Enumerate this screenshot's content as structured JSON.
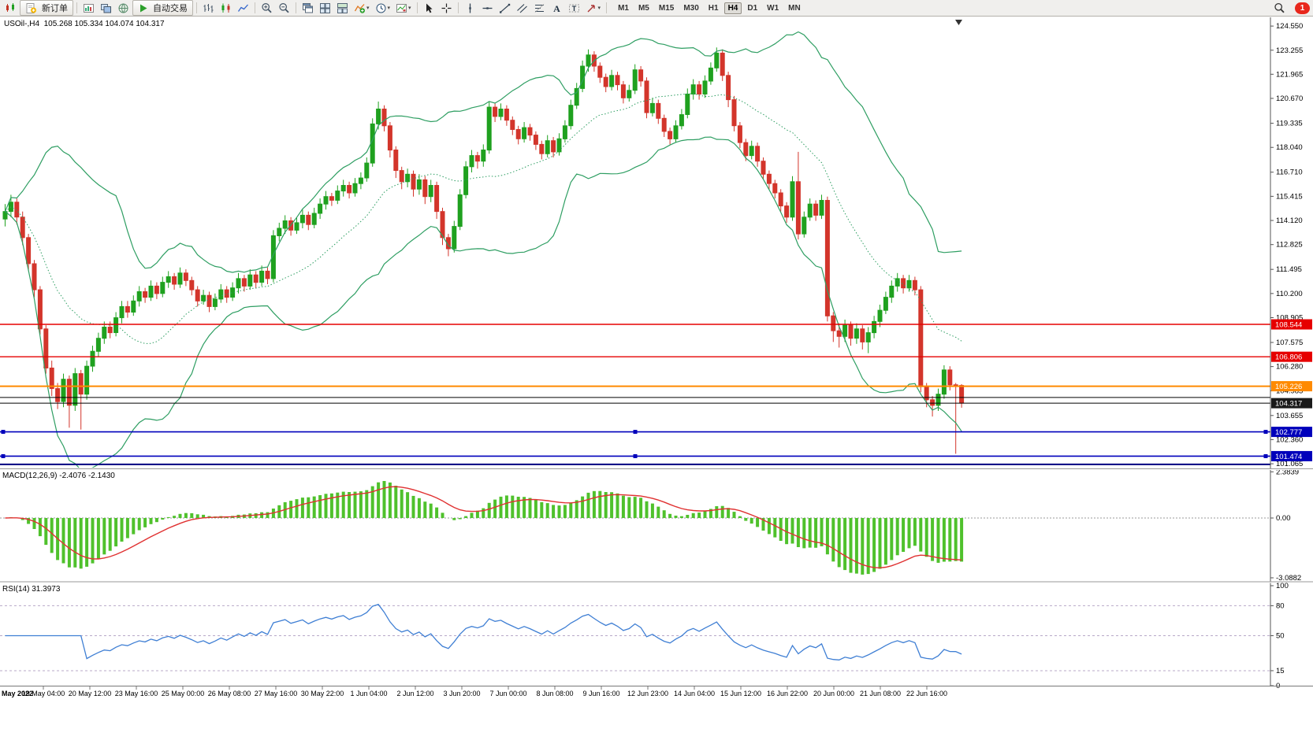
{
  "toolbar": {
    "new_order_label": "新订单",
    "auto_trading_label": "自动交易",
    "timeframes": [
      "M1",
      "M5",
      "M15",
      "M30",
      "H1",
      "H4",
      "D1",
      "W1",
      "MN"
    ],
    "active_timeframe": "H4",
    "notification_count": "1",
    "icons": [
      "app-logo",
      "new-order",
      "new-chart",
      "profiles",
      "terminal",
      "auto-trading",
      "bar-chart",
      "candlestick-chart",
      "line-chart",
      "zoom-in",
      "zoom-out",
      "cascade-windows",
      "tile-windows",
      "arrange-windows",
      "indicators",
      "periods",
      "templates",
      "cursor",
      "crosshair",
      "vertical-line",
      "horizontal-line",
      "trendline",
      "equidistant-channel",
      "fibonacci",
      "text",
      "text-label",
      "arrow-shapes",
      "search",
      "notification"
    ]
  },
  "chart": {
    "symbol_label": "USOil-,H4",
    "ohlc_label": "105.268 105.334 104.074 104.317"
  },
  "macd": {
    "label": "MACD(12,26,9) -2.4076 -2.1430",
    "axis": [
      {
        "value": 2.3839,
        "label": "2.3839"
      },
      {
        "value": 0,
        "label": "0.00"
      },
      {
        "value": -3.0882,
        "label": "-3.0882"
      }
    ]
  },
  "rsi": {
    "label": "RSI(14) 31.3973",
    "levels": [
      80,
      50,
      15
    ],
    "axis": [
      {
        "value": 100,
        "label": "100"
      },
      {
        "value": 80,
        "label": "80"
      },
      {
        "value": 50,
        "label": "50"
      },
      {
        "value": 15,
        "label": "15"
      },
      {
        "value": 0,
        "label": "0"
      }
    ]
  },
  "colors": {
    "candle_up": "#1fa11f",
    "candle_down": "#d3352b",
    "bands": "#2e9e62",
    "macd_hist": "#4fc12c",
    "macd_signal": "#e03131",
    "rsi_line": "#3f7fd4",
    "hline_red": "#e60000",
    "hline_orange": "#ff8a00",
    "hline_blue": "#0000bb",
    "axis_text": "#000000"
  },
  "chart_data": {
    "type": "candlestick",
    "symbol": "USOil-",
    "timeframe": "H4",
    "ohlc_current": {
      "open": 105.268,
      "high": 105.334,
      "low": 104.074,
      "close": 104.317
    },
    "indicators": {
      "bollinger": {
        "period": 20,
        "deviation": 2
      },
      "macd": {
        "fast": 12,
        "slow": 26,
        "signal": 9,
        "current_main": -2.4076,
        "current_signal": -2.143
      },
      "rsi": {
        "period": 14,
        "current": 31.3973
      }
    },
    "y_ticks": [
      124.55,
      123.255,
      121.965,
      120.67,
      119.335,
      118.04,
      116.71,
      115.415,
      114.12,
      112.825,
      111.495,
      110.2,
      108.905,
      107.575,
      106.28,
      104.985,
      103.655,
      102.36,
      101.065
    ],
    "x_labels": [
      "May 2022",
      "19 May 04:00",
      "20 May 12:00",
      "23 May 16:00",
      "25 May 00:00",
      "26 May 08:00",
      "27 May 16:00",
      "30 May 22:00",
      "1 Jun 04:00",
      "2 Jun 12:00",
      "3 Jun 20:00",
      "7 Jun 00:00",
      "8 Jun 08:00",
      "9 Jun 16:00",
      "12 Jun 23:00",
      "14 Jun 04:00",
      "15 Jun 12:00",
      "16 Jun 22:00",
      "20 Jun 00:00",
      "21 Jun 08:00",
      "22 Jun 16:00"
    ],
    "hlines": [
      {
        "price": 108.544,
        "label": "108.544",
        "color": "#e60000",
        "width": 1.4
      },
      {
        "price": 106.806,
        "label": "106.806",
        "color": "#e60000",
        "width": 1.4
      },
      {
        "price": 105.226,
        "label": "105.226",
        "color": "#ff8a00",
        "width": 2
      },
      {
        "price": 104.62,
        "label": null,
        "color": "#000000",
        "width": 1
      },
      {
        "price": 104.317,
        "label": "104.317",
        "color": "#000000",
        "width": 1,
        "tag": "#1a1a1a"
      },
      {
        "price": 102.777,
        "label": "102.777",
        "color": "#0000bb",
        "width": 1.6,
        "handles": true
      },
      {
        "price": 101.474,
        "label": "101.474",
        "color": "#0000bb",
        "width": 1.6,
        "handles": true
      },
      {
        "price": 101.03,
        "label": null,
        "color": "#000080",
        "width": 2
      }
    ],
    "candles": [
      [
        114.2,
        115.0,
        113.8,
        114.6
      ],
      [
        114.6,
        115.5,
        114.3,
        115.1
      ],
      [
        115.1,
        115.3,
        113.9,
        114.3
      ],
      [
        114.3,
        114.6,
        112.8,
        113.2
      ],
      [
        113.2,
        113.4,
        111.4,
        111.8
      ],
      [
        111.8,
        112.0,
        110.0,
        110.4
      ],
      [
        110.4,
        110.6,
        108.0,
        108.3
      ],
      [
        108.3,
        108.5,
        105.9,
        106.2
      ],
      [
        106.2,
        106.6,
        104.7,
        105.1
      ],
      [
        105.1,
        105.4,
        104.0,
        104.4
      ],
      [
        104.4,
        105.9,
        104.1,
        105.6
      ],
      [
        105.6,
        105.8,
        103.0,
        104.2
      ],
      [
        104.2,
        106.2,
        103.9,
        105.9
      ],
      [
        105.9,
        106.1,
        102.9,
        104.8
      ],
      [
        104.8,
        106.6,
        104.5,
        106.3
      ],
      [
        106.3,
        107.4,
        106.0,
        107.1
      ],
      [
        107.1,
        108.1,
        106.8,
        107.8
      ],
      [
        107.8,
        108.7,
        107.5,
        108.4
      ],
      [
        108.4,
        108.7,
        107.8,
        108.1
      ],
      [
        108.1,
        109.2,
        107.9,
        108.9
      ],
      [
        108.9,
        109.8,
        108.6,
        109.5
      ],
      [
        109.5,
        109.8,
        108.9,
        109.2
      ],
      [
        109.2,
        110.1,
        109.0,
        109.8
      ],
      [
        109.8,
        110.6,
        109.5,
        110.3
      ],
      [
        110.3,
        110.5,
        109.7,
        110.0
      ],
      [
        110.0,
        110.9,
        109.8,
        110.6
      ],
      [
        110.6,
        110.8,
        109.9,
        110.2
      ],
      [
        110.2,
        111.1,
        110.0,
        110.8
      ],
      [
        110.8,
        111.4,
        110.5,
        111.1
      ],
      [
        111.1,
        111.3,
        110.4,
        110.7
      ],
      [
        110.7,
        111.6,
        110.5,
        111.3
      ],
      [
        111.3,
        111.5,
        110.6,
        110.9
      ],
      [
        110.9,
        111.1,
        110.1,
        110.4
      ],
      [
        110.4,
        110.6,
        109.5,
        109.8
      ],
      [
        109.8,
        110.4,
        109.6,
        110.1
      ],
      [
        110.1,
        110.3,
        109.2,
        109.5
      ],
      [
        109.5,
        110.2,
        109.3,
        109.9
      ],
      [
        109.9,
        110.7,
        109.7,
        110.4
      ],
      [
        110.4,
        110.6,
        109.7,
        110.0
      ],
      [
        110.0,
        110.8,
        109.8,
        110.5
      ],
      [
        110.5,
        111.3,
        110.2,
        111.0
      ],
      [
        111.0,
        111.2,
        110.3,
        110.6
      ],
      [
        110.6,
        111.5,
        110.4,
        111.2
      ],
      [
        111.2,
        111.4,
        110.5,
        110.8
      ],
      [
        110.8,
        111.7,
        110.6,
        111.4
      ],
      [
        111.4,
        111.6,
        110.7,
        111.0
      ],
      [
        111.0,
        113.6,
        110.8,
        113.3
      ],
      [
        113.3,
        114.0,
        113.0,
        113.7
      ],
      [
        113.7,
        114.4,
        113.4,
        114.1
      ],
      [
        114.1,
        114.3,
        113.3,
        113.6
      ],
      [
        113.6,
        114.3,
        113.4,
        114.0
      ],
      [
        114.0,
        114.7,
        113.7,
        114.4
      ],
      [
        114.4,
        114.6,
        113.6,
        113.9
      ],
      [
        113.9,
        114.8,
        113.7,
        114.5
      ],
      [
        114.5,
        115.3,
        114.2,
        115.0
      ],
      [
        115.0,
        115.7,
        114.7,
        115.4
      ],
      [
        115.4,
        115.6,
        114.9,
        115.2
      ],
      [
        115.2,
        116.0,
        115.0,
        115.7
      ],
      [
        115.7,
        116.3,
        115.4,
        116.0
      ],
      [
        116.0,
        116.2,
        115.3,
        115.6
      ],
      [
        115.6,
        116.4,
        115.4,
        116.1
      ],
      [
        116.1,
        116.7,
        115.8,
        116.4
      ],
      [
        116.4,
        117.5,
        116.2,
        117.2
      ],
      [
        117.2,
        119.6,
        117.0,
        119.3
      ],
      [
        119.3,
        120.5,
        119.0,
        120.1
      ],
      [
        120.1,
        120.3,
        118.9,
        119.2
      ],
      [
        119.2,
        119.4,
        117.5,
        117.9
      ],
      [
        117.9,
        118.1,
        116.4,
        116.8
      ],
      [
        116.8,
        117.0,
        115.8,
        116.2
      ],
      [
        116.2,
        116.9,
        115.9,
        116.6
      ],
      [
        116.6,
        116.8,
        115.4,
        115.8
      ],
      [
        115.8,
        116.6,
        115.5,
        116.3
      ],
      [
        116.3,
        116.5,
        115.0,
        115.4
      ],
      [
        115.4,
        116.3,
        115.1,
        116.0
      ],
      [
        116.0,
        116.2,
        114.2,
        114.6
      ],
      [
        114.6,
        114.8,
        112.8,
        113.2
      ],
      [
        113.2,
        113.4,
        112.2,
        112.6
      ],
      [
        112.6,
        114.1,
        112.4,
        113.8
      ],
      [
        113.8,
        115.8,
        113.6,
        115.5
      ],
      [
        115.5,
        117.3,
        115.3,
        117.0
      ],
      [
        117.0,
        117.9,
        116.7,
        117.6
      ],
      [
        117.6,
        117.8,
        116.9,
        117.3
      ],
      [
        117.3,
        118.2,
        117.0,
        117.9
      ],
      [
        117.9,
        120.5,
        117.7,
        120.2
      ],
      [
        120.2,
        120.4,
        119.4,
        119.7
      ],
      [
        119.7,
        120.4,
        119.5,
        120.1
      ],
      [
        120.1,
        120.3,
        119.2,
        119.5
      ],
      [
        119.5,
        119.7,
        118.7,
        119.0
      ],
      [
        119.0,
        119.2,
        118.2,
        118.5
      ],
      [
        118.5,
        119.4,
        118.3,
        119.1
      ],
      [
        119.1,
        119.3,
        118.4,
        118.7
      ],
      [
        118.7,
        118.9,
        117.9,
        118.2
      ],
      [
        118.2,
        118.4,
        117.4,
        117.7
      ],
      [
        117.7,
        118.7,
        117.5,
        118.4
      ],
      [
        118.4,
        118.6,
        117.5,
        117.8
      ],
      [
        117.8,
        118.8,
        117.6,
        118.5
      ],
      [
        118.5,
        119.5,
        118.3,
        119.2
      ],
      [
        119.2,
        120.6,
        119.0,
        120.3
      ],
      [
        120.3,
        121.5,
        120.1,
        121.2
      ],
      [
        121.2,
        122.7,
        121.0,
        122.4
      ],
      [
        122.4,
        123.3,
        122.1,
        123.0
      ],
      [
        123.0,
        123.2,
        122.1,
        122.4
      ],
      [
        122.4,
        122.6,
        121.5,
        121.8
      ],
      [
        121.8,
        122.0,
        121.0,
        121.3
      ],
      [
        121.3,
        122.2,
        121.1,
        121.9
      ],
      [
        121.9,
        122.1,
        121.1,
        121.4
      ],
      [
        121.4,
        121.6,
        120.4,
        120.7
      ],
      [
        120.7,
        121.4,
        120.5,
        121.1
      ],
      [
        121.1,
        122.5,
        120.9,
        122.2
      ],
      [
        122.2,
        122.4,
        121.3,
        121.6
      ],
      [
        121.6,
        121.8,
        119.6,
        119.9
      ],
      [
        119.9,
        120.7,
        119.7,
        120.4
      ],
      [
        120.4,
        120.6,
        119.3,
        119.6
      ],
      [
        119.6,
        119.8,
        118.6,
        118.9
      ],
      [
        118.9,
        119.1,
        118.2,
        118.5
      ],
      [
        118.5,
        119.5,
        118.3,
        119.2
      ],
      [
        119.2,
        120.1,
        119.0,
        119.8
      ],
      [
        119.8,
        121.2,
        119.6,
        120.9
      ],
      [
        120.9,
        121.7,
        120.6,
        121.4
      ],
      [
        121.4,
        121.6,
        120.6,
        120.9
      ],
      [
        120.9,
        121.9,
        120.7,
        121.6
      ],
      [
        121.6,
        122.6,
        121.4,
        122.3
      ],
      [
        122.3,
        123.4,
        122.1,
        123.1
      ],
      [
        123.1,
        123.3,
        121.6,
        121.9
      ],
      [
        121.9,
        122.1,
        120.2,
        120.6
      ],
      [
        120.6,
        120.8,
        118.9,
        119.2
      ],
      [
        119.2,
        119.4,
        118.0,
        118.3
      ],
      [
        118.3,
        118.5,
        117.3,
        117.6
      ],
      [
        117.6,
        118.4,
        117.4,
        118.1
      ],
      [
        118.1,
        118.3,
        117.0,
        117.3
      ],
      [
        117.3,
        117.5,
        116.3,
        116.6
      ],
      [
        116.6,
        116.8,
        115.8,
        116.1
      ],
      [
        116.1,
        116.3,
        115.3,
        115.6
      ],
      [
        115.6,
        115.8,
        114.6,
        114.9
      ],
      [
        114.9,
        115.1,
        114.0,
        114.3
      ],
      [
        114.3,
        116.5,
        114.1,
        116.2
      ],
      [
        116.2,
        117.8,
        113.1,
        113.4
      ],
      [
        113.4,
        114.6,
        113.2,
        114.3
      ],
      [
        114.3,
        115.3,
        114.1,
        115.0
      ],
      [
        115.0,
        115.2,
        114.1,
        114.4
      ],
      [
        114.4,
        115.5,
        114.2,
        115.2
      ],
      [
        115.2,
        115.4,
        108.7,
        109.0
      ],
      [
        109.0,
        109.2,
        107.6,
        108.2
      ],
      [
        108.2,
        108.6,
        107.3,
        107.9
      ],
      [
        107.9,
        108.8,
        107.6,
        108.5
      ],
      [
        108.5,
        108.7,
        107.4,
        107.8
      ],
      [
        107.8,
        108.6,
        107.5,
        108.3
      ],
      [
        108.3,
        108.5,
        107.2,
        107.6
      ],
      [
        107.6,
        108.4,
        107.0,
        108.1
      ],
      [
        108.1,
        109.0,
        107.8,
        108.7
      ],
      [
        108.7,
        109.6,
        108.4,
        109.3
      ],
      [
        109.3,
        110.3,
        109.1,
        110.0
      ],
      [
        110.0,
        110.9,
        109.7,
        110.6
      ],
      [
        110.6,
        111.3,
        110.3,
        111.0
      ],
      [
        111.0,
        111.2,
        110.2,
        110.5
      ],
      [
        110.5,
        111.2,
        110.3,
        110.9
      ],
      [
        110.9,
        111.1,
        110.1,
        110.4
      ],
      [
        110.4,
        110.6,
        104.9,
        105.2
      ],
      [
        105.2,
        105.4,
        104.1,
        104.5
      ],
      [
        104.5,
        104.7,
        103.6,
        104.2
      ],
      [
        104.2,
        105.1,
        103.9,
        104.8
      ],
      [
        104.8,
        106.35,
        104.55,
        106.1
      ],
      [
        106.1,
        106.3,
        105.0,
        105.3
      ],
      [
        105.3,
        105.4,
        101.6,
        105.27
      ],
      [
        105.268,
        105.334,
        104.074,
        104.317
      ]
    ]
  }
}
